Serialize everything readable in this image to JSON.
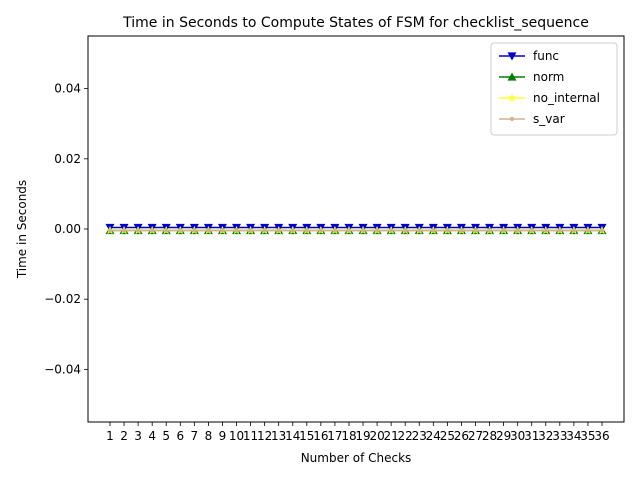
{
  "chart_data": {
    "type": "line",
    "title": "Time in Seconds to Compute States of FSM for checklist_sequence",
    "xlabel": "Number of Checks",
    "ylabel": "Time in Seconds",
    "x": [
      1,
      2,
      3,
      4,
      5,
      6,
      7,
      8,
      9,
      10,
      11,
      12,
      13,
      14,
      15,
      16,
      17,
      18,
      19,
      20,
      21,
      22,
      23,
      24,
      25,
      26,
      27,
      28,
      29,
      30,
      31,
      32,
      33,
      34,
      35,
      36
    ],
    "ylim": [
      -0.055,
      0.055
    ],
    "yticks": [
      -0.04,
      -0.02,
      0.0,
      0.02,
      0.04
    ],
    "ytick_labels": [
      "−0.04",
      "−0.02",
      "0.00",
      "0.02",
      "0.04"
    ],
    "grid": false,
    "legend_position": "top-right",
    "series": [
      {
        "name": "func",
        "color": "#0000cc",
        "marker": "triangle-down",
        "values": [
          0,
          0,
          0,
          0,
          0,
          0,
          0,
          0,
          0,
          0,
          0,
          0,
          0,
          0,
          0,
          0,
          0,
          0,
          0,
          0,
          0,
          0,
          0,
          0,
          0,
          0,
          0,
          0,
          0,
          0,
          0,
          0,
          0,
          0,
          0,
          0
        ]
      },
      {
        "name": "norm",
        "color": "#008000",
        "marker": "triangle-up",
        "values": [
          0,
          0,
          0,
          0,
          0,
          0,
          0,
          0,
          0,
          0,
          0,
          0,
          0,
          0,
          0,
          0,
          0,
          0,
          0,
          0,
          0,
          0,
          0,
          0,
          0,
          0,
          0,
          0,
          0,
          0,
          0,
          0,
          0,
          0,
          0,
          0
        ]
      },
      {
        "name": "no_internal",
        "color": "#ffff33",
        "marker": "star",
        "values": [
          0,
          0,
          0,
          0,
          0,
          0,
          0,
          0,
          0,
          0,
          0,
          0,
          0,
          0,
          0,
          0,
          0,
          0,
          0,
          0,
          0,
          0,
          0,
          0,
          0,
          0,
          0,
          0,
          0,
          0,
          0,
          0,
          0,
          0,
          0,
          0
        ]
      },
      {
        "name": "s_var",
        "color": "#d2b48c",
        "marker": "point",
        "values": [
          0,
          0,
          0,
          0,
          0,
          0,
          0,
          0,
          0,
          0,
          0,
          0,
          0,
          0,
          0,
          0,
          0,
          0,
          0,
          0,
          0,
          0,
          0,
          0,
          0,
          0,
          0,
          0,
          0,
          0,
          0,
          0,
          0,
          0,
          0,
          0
        ]
      }
    ]
  }
}
